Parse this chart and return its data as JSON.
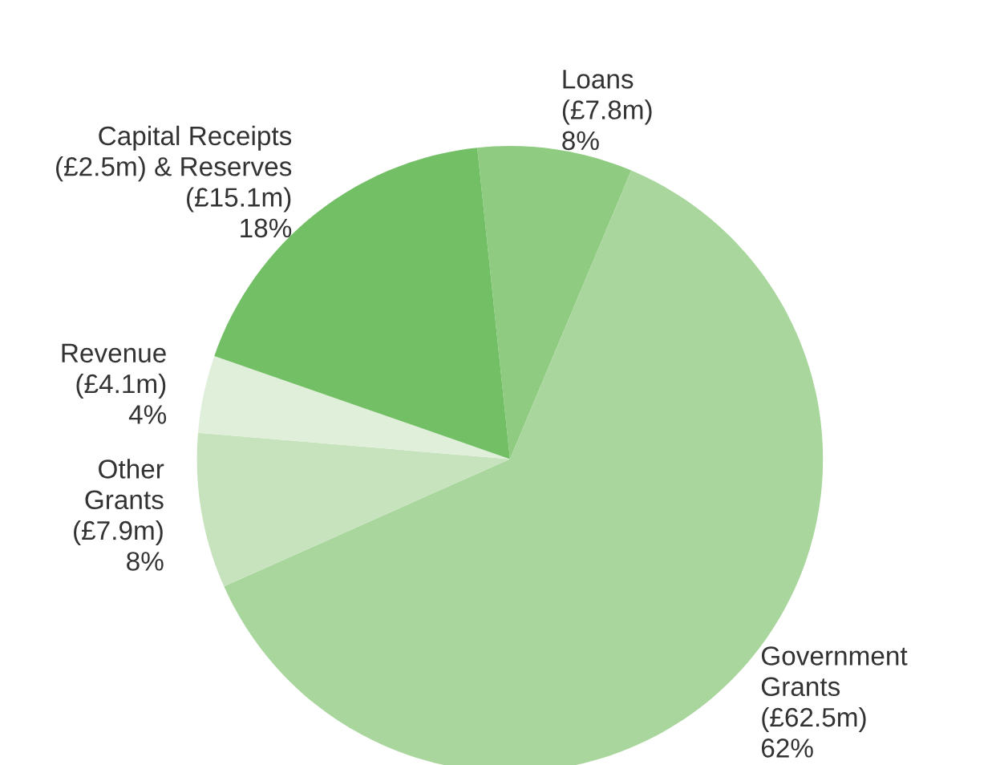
{
  "chart_data": {
    "type": "pie",
    "categories": [
      "Loans\n(£7.8m)",
      "Government\nGrants\n(£62.5m)",
      "Other\nGrants\n(£7.9m)",
      "Revenue\n(£4.1m)",
      "Capital Receipts\n(£2.5m) & Reserves\n(£15.1m)"
    ],
    "values": [
      8,
      62,
      8,
      4,
      18
    ],
    "value_labels": [
      "8%",
      "62%",
      "8%",
      "4%",
      "18%"
    ],
    "colors": [
      "#8fcb80",
      "#a9d69c",
      "#c6e3bd",
      "#e0efd9",
      "#72bf65"
    ]
  }
}
